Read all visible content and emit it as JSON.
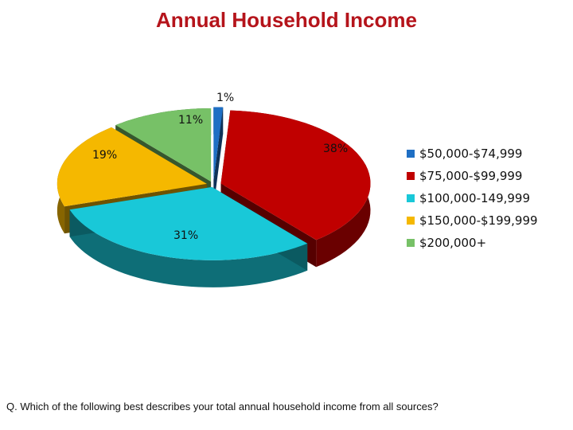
{
  "title": "Annual Household Income",
  "question": "Q. Which of the following best describes your total annual household income from all sources?",
  "chart_data": {
    "type": "pie",
    "style": "3d-exploded",
    "categories": [
      "$50,000-$74,999",
      "$75,000-$99,999",
      "$100,000-149,999",
      "$150,000-$199,999",
      "$200,000+"
    ],
    "values": [
      1,
      38,
      31,
      19,
      11
    ],
    "value_labels": [
      "1%",
      "38%",
      "31%",
      "19%",
      "11%"
    ],
    "colors": [
      "#1f6fc4",
      "#c00000",
      "#19c8d8",
      "#f5b800",
      "#77c167"
    ],
    "legend_position": "right"
  }
}
